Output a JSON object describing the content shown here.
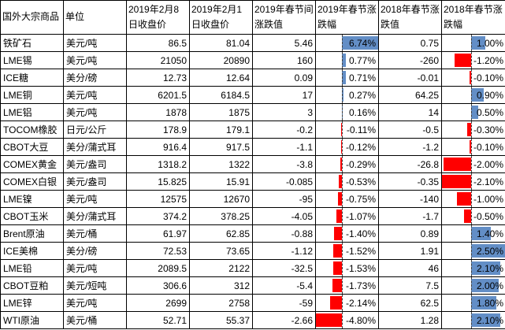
{
  "format": {
    "positive_bar_color": "#638EC6",
    "negative_bar_color": "#FF0000",
    "axis_line_color": "#404040",
    "grid_line_color": "#000000",
    "text_color": "#000000",
    "background_color": "#FFFFFF"
  },
  "chart_data": {
    "type": "table",
    "title": "",
    "columns": [
      {
        "key": "name",
        "label": "国外大宗商品",
        "align": "left",
        "databar": false
      },
      {
        "key": "unit",
        "label": "单位",
        "align": "left",
        "databar": false
      },
      {
        "key": "close_0208",
        "label": "2019年2月8日收盘价",
        "align": "right",
        "databar": false
      },
      {
        "key": "close_0201",
        "label": "2019年2月1日收盘价",
        "align": "right",
        "databar": false
      },
      {
        "key": "chg_2019",
        "label": "2019年春节间涨跌值",
        "align": "right",
        "databar": false
      },
      {
        "key": "pct_2019",
        "label": "2019年春节涨跌幅",
        "align": "right",
        "databar": true
      },
      {
        "key": "chg_2018",
        "label": "2018年春节涨跌值",
        "align": "right",
        "databar": false
      },
      {
        "key": "pct_2018",
        "label": "2018年春节涨跌幅",
        "align": "right",
        "databar": true
      }
    ],
    "rows": [
      [
        "铁矿石",
        "美元/吨",
        "86.5",
        "81.04",
        "5.46",
        "6.74%",
        "0.75",
        "1.00%"
      ],
      [
        "LME锡",
        "美元/吨",
        "21050",
        "20890",
        "160",
        "0.77%",
        "-260",
        "-1.20%"
      ],
      [
        "ICE糖",
        "美分/磅",
        "12.73",
        "12.64",
        "0.09",
        "0.71%",
        "-0.01",
        "-0.10%"
      ],
      [
        "LME铜",
        "美元/吨",
        "6201.5",
        "6184.5",
        "17",
        "0.27%",
        "64.25",
        "0.90%"
      ],
      [
        "LME铝",
        "美元/吨",
        "1878",
        "1875",
        "3",
        "0.16%",
        "14",
        "0.50%"
      ],
      [
        "TOCOM橡胶",
        "日元/公斤",
        "178.9",
        "179.1",
        "-0.2",
        "-0.11%",
        "-0.5",
        "-0.30%"
      ],
      [
        "CBOT大豆",
        "美分/蒲式耳",
        "916.4",
        "917.5",
        "-1.1",
        "-0.12%",
        "-1.2",
        "-0.10%"
      ],
      [
        "COMEX黄金",
        "美元/盎司",
        "1318.2",
        "1322",
        "-3.8",
        "-0.29%",
        "-26.8",
        "-2.00%"
      ],
      [
        "COMEX白银",
        "美元/盎司",
        "15.825",
        "15.91",
        "-0.085",
        "-0.53%",
        "-0.35",
        "-2.10%"
      ],
      [
        "LME镍",
        "美元/吨",
        "12575",
        "12670",
        "-95",
        "-0.75%",
        "-140",
        "-1.00%"
      ],
      [
        "CBOT玉米",
        "美分/蒲式耳",
        "374.2",
        "378.25",
        "-4.05",
        "-1.07%",
        "-1.7",
        "-0.50%"
      ],
      [
        "Brent原油",
        "美元/桶",
        "61.97",
        "62.85",
        "-0.88",
        "-1.40%",
        "0.89",
        "1.40%"
      ],
      [
        "ICE美棉",
        "美分/磅",
        "72.53",
        "73.65",
        "-1.12",
        "-1.52%",
        "1.91",
        "2.50%"
      ],
      [
        "LME铅",
        "美元/吨",
        "2089.5",
        "2122",
        "-32.5",
        "-1.53%",
        "46",
        "2.10%"
      ],
      [
        "CBOT豆粕",
        "美元/短吨",
        "306.6",
        "312",
        "-5.4",
        "-1.73%",
        "7.5",
        "2.00%"
      ],
      [
        "LME锌",
        "美元/吨",
        "2699",
        "2758",
        "-59",
        "-2.14%",
        "62.5",
        "1.80%"
      ],
      [
        "WTI原油",
        "美元/桶",
        "52.71",
        "55.37",
        "-2.66",
        "-4.80%",
        "1.28",
        "2.10%"
      ]
    ]
  }
}
